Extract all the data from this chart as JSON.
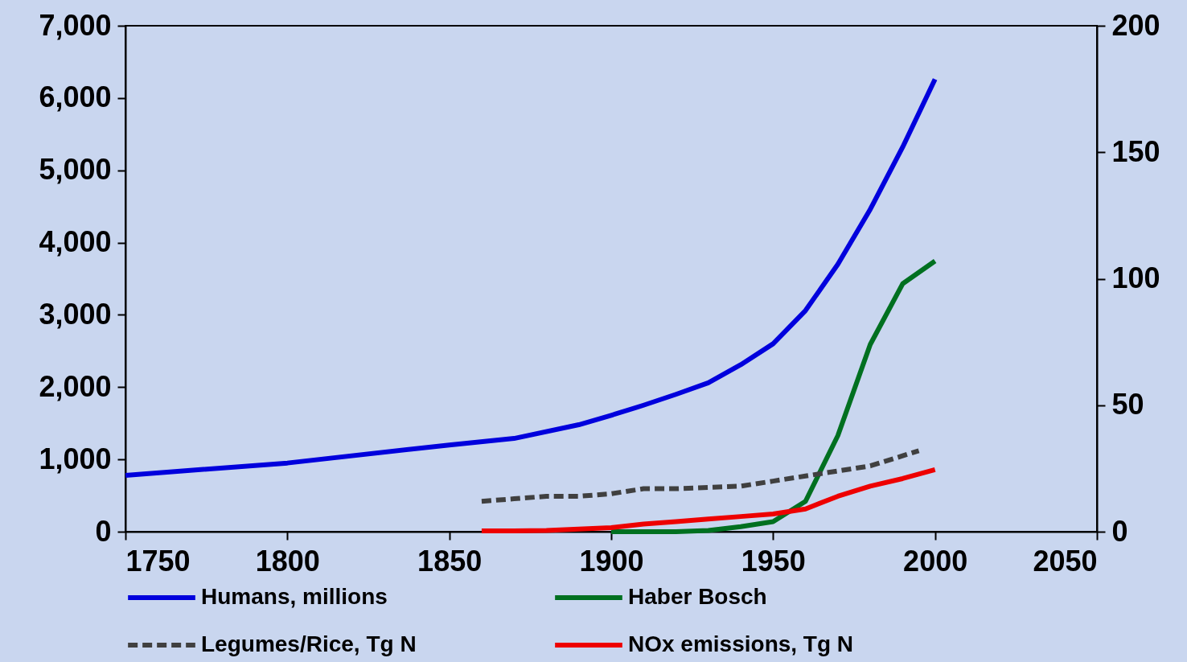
{
  "chart_data": {
    "type": "line",
    "xlim": [
      1750,
      2050
    ],
    "xticks": [
      1750,
      1800,
      1850,
      1900,
      1950,
      2000,
      2050
    ],
    "ylim": [
      0,
      7000
    ],
    "yticks": [
      {
        "value": 0,
        "label": "0"
      },
      {
        "value": 1000,
        "label": "1,000"
      },
      {
        "value": 2000,
        "label": "2,000"
      },
      {
        "value": 3000,
        "label": "3,000"
      },
      {
        "value": 4000,
        "label": "4,000"
      },
      {
        "value": 5000,
        "label": "5,000"
      },
      {
        "value": 6000,
        "label": "6,000"
      },
      {
        "value": 7000,
        "label": "7,000"
      }
    ],
    "y2lim": [
      0,
      200
    ],
    "y2ticks": [
      0,
      50,
      100,
      150,
      200
    ],
    "grid": false,
    "legend": "bottom",
    "marker": "none",
    "series": [
      {
        "name": "Humans, millions",
        "color": "#0000dd",
        "line_style": "solid",
        "x": [
          1750,
          1800,
          1850,
          1870,
          1890,
          1900,
          1910,
          1920,
          1930,
          1940,
          1950,
          1960,
          1970,
          1980,
          1990,
          2000
        ],
        "values": [
          780,
          950,
          1200,
          1290,
          1480,
          1610,
          1750,
          1900,
          2060,
          2310,
          2600,
          3060,
          3700,
          4460,
          5320,
          6260
        ]
      },
      {
        "name": "Haber Bosch",
        "color": "#007020",
        "line_style": "solid",
        "axis": "y2",
        "x": [
          1900,
          1910,
          1920,
          1930,
          1940,
          1950,
          1960,
          1970,
          1980,
          1990,
          2000
        ],
        "values": [
          0,
          0,
          0,
          0.5,
          2,
          4,
          12,
          38,
          74,
          98,
          107
        ]
      },
      {
        "name": "Legumes/Rice, Tg N",
        "color": "#404040",
        "line_style": "dashed",
        "axis": "y2",
        "x": [
          1860,
          1870,
          1880,
          1890,
          1900,
          1910,
          1920,
          1930,
          1940,
          1950,
          1960,
          1970,
          1980,
          1990,
          1995
        ],
        "values": [
          12,
          13,
          14,
          14,
          15,
          17,
          17,
          17.5,
          18,
          20,
          22,
          24,
          26,
          30,
          32
        ]
      },
      {
        "name": "NOx emissions, Tg N",
        "color": "#ee0000",
        "line_style": "solid",
        "axis": "y2",
        "x": [
          1860,
          1870,
          1880,
          1890,
          1900,
          1910,
          1920,
          1930,
          1940,
          1950,
          1960,
          1970,
          1980,
          1990,
          2000
        ],
        "values": [
          0.3,
          0.3,
          0.5,
          1,
          1.6,
          3,
          4,
          5,
          6,
          7,
          9,
          14,
          18,
          21,
          24.5
        ]
      }
    ]
  }
}
